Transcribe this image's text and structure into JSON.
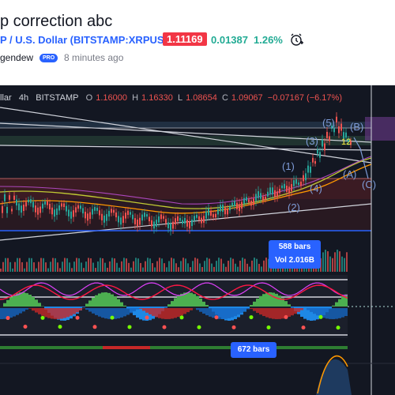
{
  "header": {
    "title": "p correction abc",
    "symbol_text": "P / U.S. Dollar (BITSTAMP:XRPUSD)",
    "price": "1.11169",
    "change": "0.01387",
    "change_pct": "1.26%",
    "author": "gendew",
    "pro_badge": "PRO",
    "posted": "8 minutes ago",
    "alert_icon": "alarm-clock-add-icon"
  },
  "legend": {
    "symbol": "llar",
    "interval": "4h",
    "exchange": "BITSTAMP",
    "o_label": "O",
    "o_value": "1.16000",
    "h_label": "H",
    "h_value": "1.16330",
    "l_label": "L",
    "l_value": "1.08654",
    "c_label": "C",
    "c_value": "1.09067",
    "change": "−0.07167 (−6.17%)"
  },
  "tooltips": {
    "bars_1": "588 bars",
    "vol_1": "Vol 2.016B",
    "bars_2": "672 bars"
  },
  "wave_labels": [
    "(5)",
    "(3)",
    "(1)",
    "(4)",
    "(2)",
    "(B)",
    "(A)",
    "(C)",
    "12"
  ],
  "colors": {
    "background": "#131722",
    "price_badge": "#f23645",
    "positive": "#22ab94",
    "accent": "#2962ff",
    "wave_label": "#7e9cd8"
  }
}
